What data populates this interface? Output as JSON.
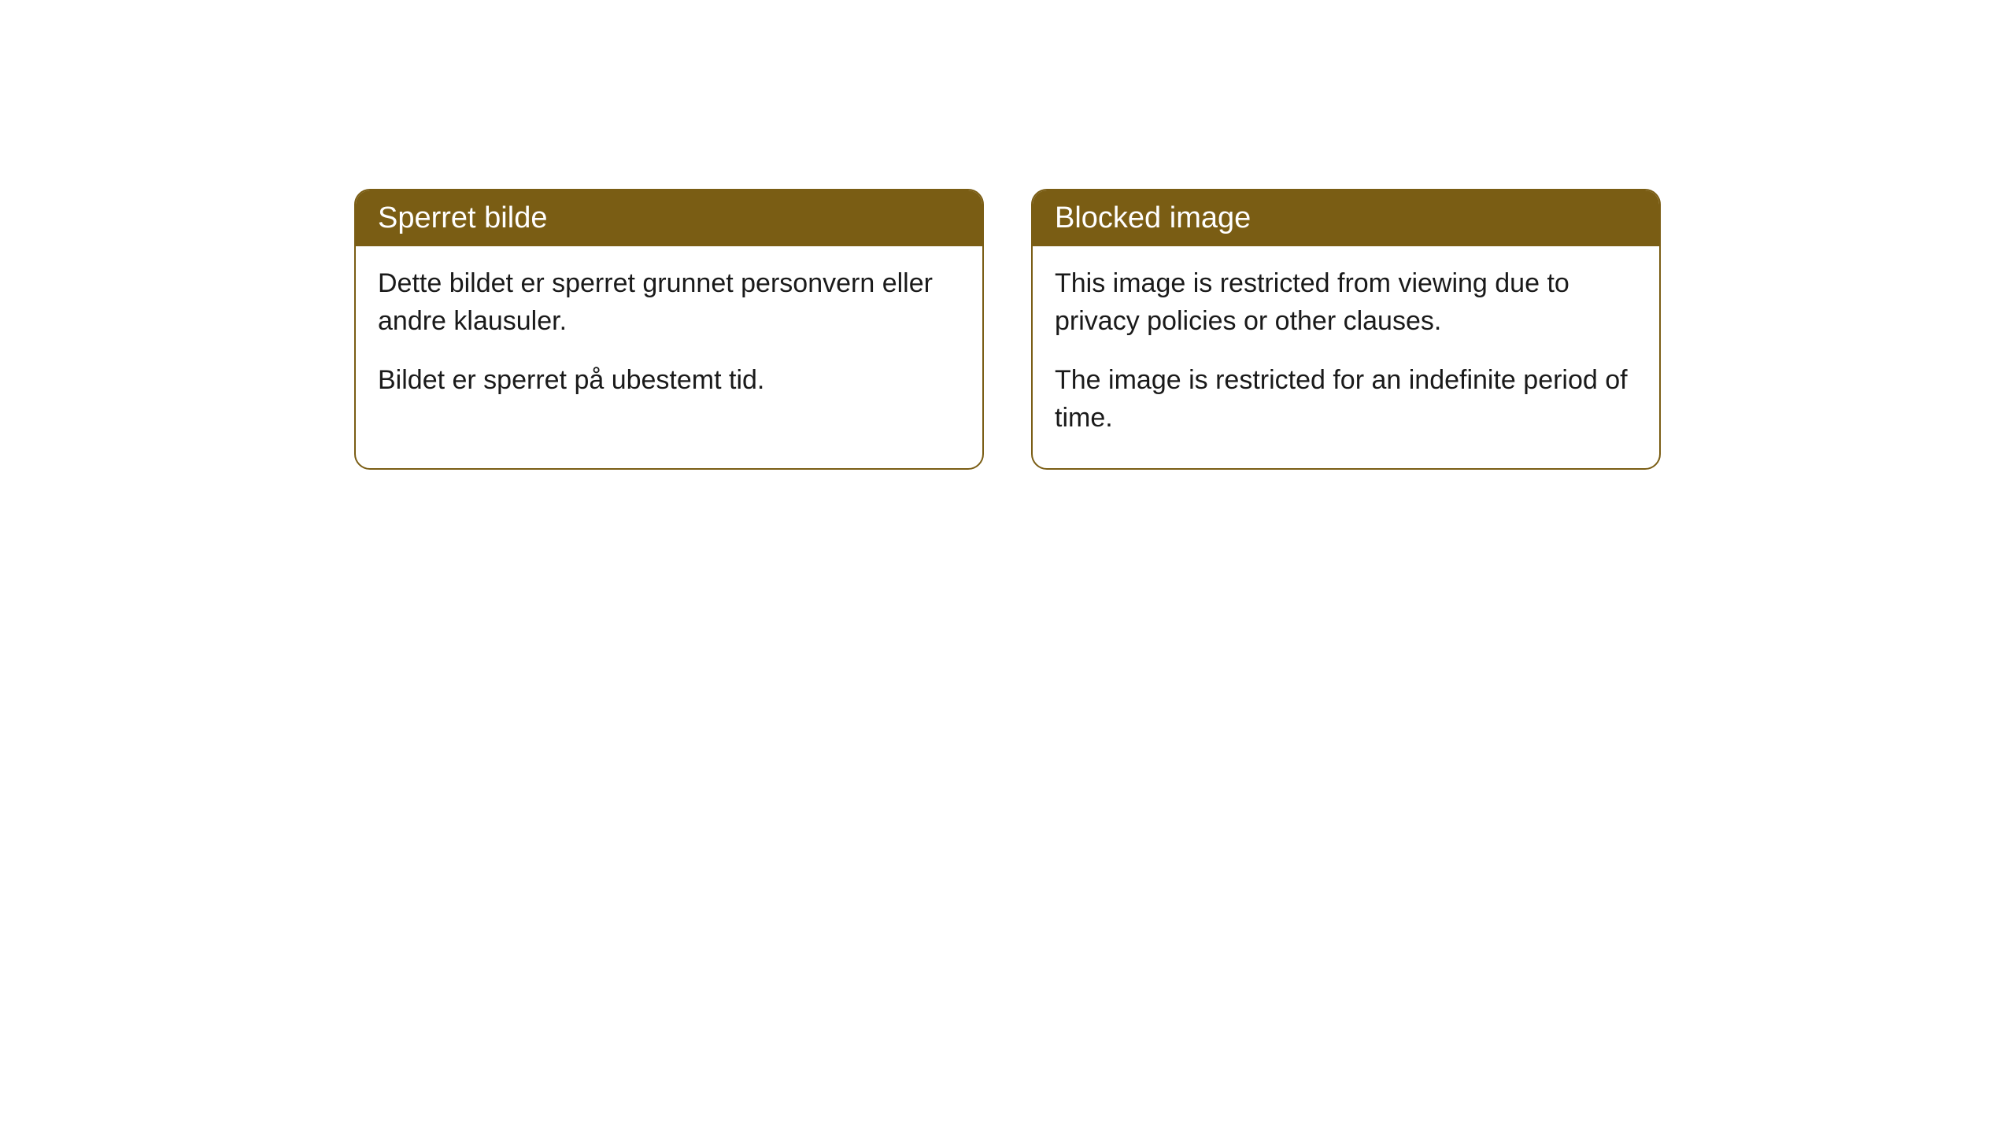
{
  "cards": [
    {
      "title": "Sperret bilde",
      "paragraph1": "Dette bildet er sperret grunnet personvern eller andre klausuler.",
      "paragraph2": "Bildet er sperret på ubestemt tid."
    },
    {
      "title": "Blocked image",
      "paragraph1": "This image is restricted from viewing due to privacy policies or other clauses.",
      "paragraph2": "The image is restricted for an indefinite period of time."
    }
  ],
  "styling": {
    "header_background_color": "#7a5d14",
    "header_text_color": "#ffffff",
    "border_color": "#7a5d14",
    "body_background_color": "#ffffff",
    "body_text_color": "#1a1a1a",
    "border_radius": "20px",
    "header_font_size": "38px",
    "body_font_size": "34px"
  }
}
